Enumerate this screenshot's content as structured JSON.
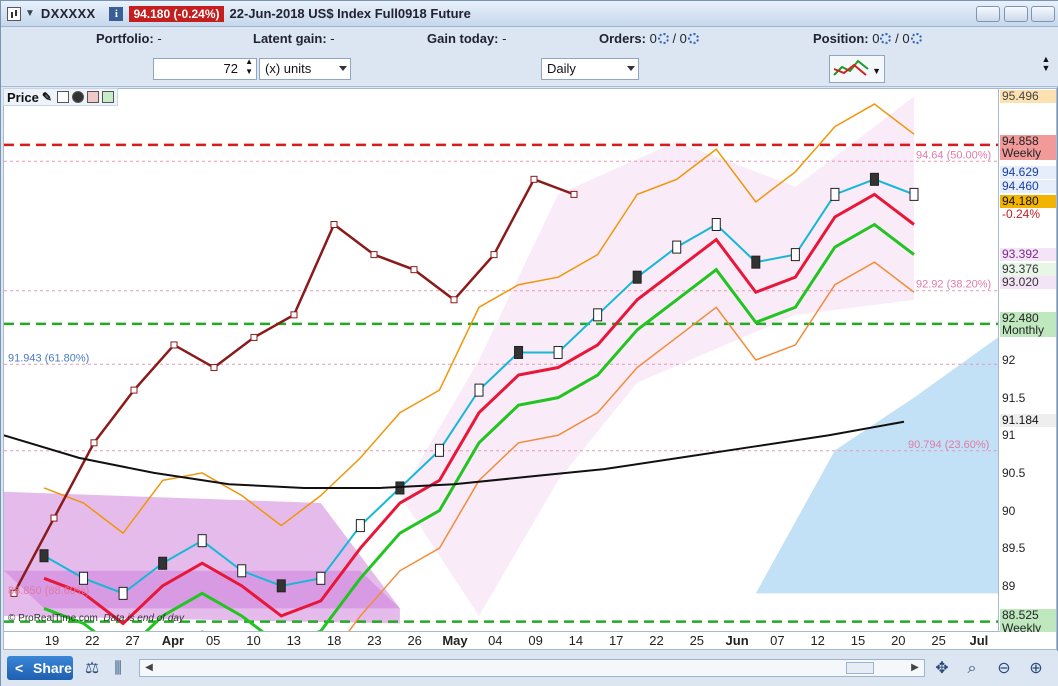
{
  "title_bar": {
    "symbol": "DXXXXX",
    "info_icon": "i",
    "last_badge": "94.180 (-0.24%)",
    "title": "22-Jun-2018 US$ Index Full0918 Future"
  },
  "info_bar": {
    "portfolio_label": "Portfolio:",
    "portfolio_value": "-",
    "latent_label": "Latent gain:",
    "latent_value": "-",
    "today_label": "Gain today:",
    "today_value": "-",
    "orders_label": "Orders:",
    "orders_value": "0",
    "orders_sep": "/ 0",
    "position_label": "Position:",
    "position_value": "0",
    "position_sep": "/ 0"
  },
  "toolbar": {
    "quantity_value": "72",
    "units_value": "(x) units",
    "timeframe_value": "Daily"
  },
  "panel": {
    "title": "Price"
  },
  "price_axis": {
    "ticks": [
      "92",
      "91.5",
      "91",
      "90.5",
      "90",
      "89.5",
      "89"
    ],
    "last_price": "94.180",
    "last_change": "-0.24%",
    "level_95496": "95.496",
    "weekly_high": "94.858",
    "weekly_high_label": "Weekly",
    "ma_value_1": "94.629",
    "ma_value_2": "94.460",
    "level_93392": "93.392",
    "level_93376": "93.376",
    "level_93020": "93.020",
    "monthly_value": "92.480",
    "monthly_label": "Monthly",
    "ma_value_3": "91.184",
    "weekly_low": "88.525",
    "weekly_low_label": "Weekly"
  },
  "annotations": {
    "fib_50": "94.64 (50.00%)",
    "fib_382": "92.92 (38.20%)",
    "fib_618": "91.943 (61.80%)",
    "fib_236": "90.794 (23.60%)",
    "fib_low": "88.850 (88.60%)",
    "credit": "© ProRealTime.com",
    "credit_note": "Data is end of day"
  },
  "x_axis": {
    "labels": [
      "19",
      "22",
      "27",
      "Apr",
      "05",
      "10",
      "13",
      "18",
      "23",
      "26",
      "May",
      "04",
      "09",
      "14",
      "17",
      "22",
      "25",
      "Jun",
      "07",
      "12",
      "15",
      "20",
      "25",
      "Jul"
    ]
  },
  "bottom_bar": {
    "share_label": "Share"
  },
  "colors": {
    "down_badge": "#c41e1e",
    "price_line": "#8b1a1a",
    "moving_avg_red": "#e8173a",
    "moving_avg_green": "#22c422",
    "bollinger": "#f0960a",
    "cloud_fill": "#8fc8ef",
    "purple_band": "#b43cc8"
  },
  "chart_data": {
    "type": "line",
    "title": "",
    "x": [
      "19",
      "22",
      "27",
      "Apr",
      "05",
      "10",
      "13",
      "18",
      "23",
      "26",
      "May",
      "04",
      "09",
      "14",
      "17",
      "22",
      "25",
      "Jun",
      "07",
      "12",
      "15",
      "20",
      "25"
    ],
    "series": [
      {
        "values": [
          89.4,
          89.1,
          88.9,
          89.3,
          89.6,
          89.2,
          89.0,
          89.1,
          89.8,
          90.3,
          90.8,
          91.6,
          92.1,
          92.1,
          92.6,
          93.1,
          93.5,
          93.8,
          93.3,
          93.4,
          94.2,
          94.4,
          94.2
        ]
      }
    ],
    "ylim": [
      88.4,
      95.6
    ],
    "reference_lines": [
      94.858,
      92.48,
      88.525
    ],
    "grid": false
  }
}
